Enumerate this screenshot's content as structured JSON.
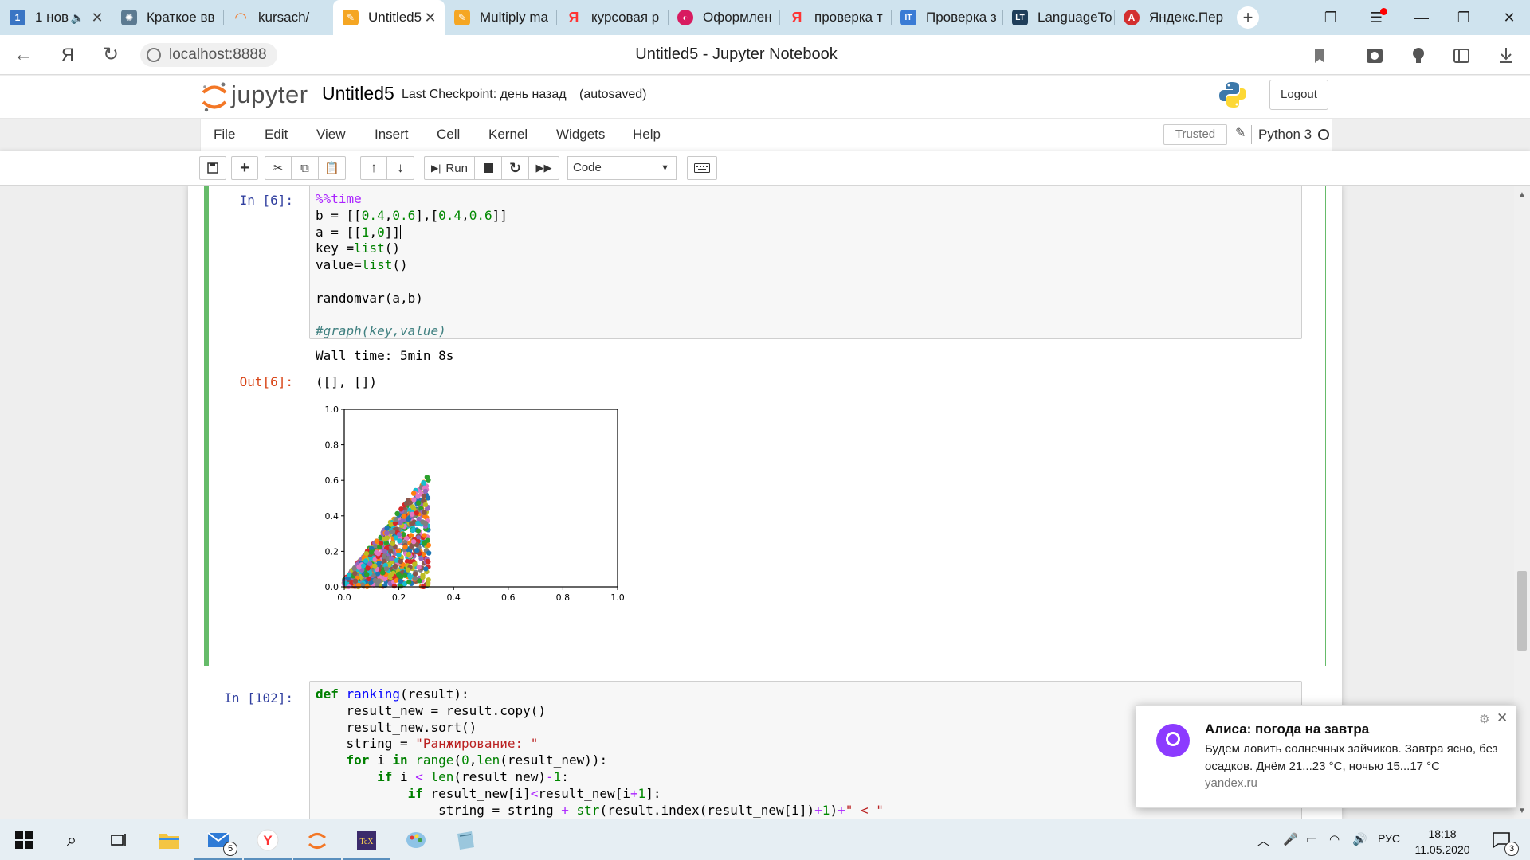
{
  "browser": {
    "tabs": [
      {
        "label": "1 нов",
        "icon": "blue-1",
        "active": false,
        "muted_icon": true
      },
      {
        "label": "Краткое вв",
        "icon": "gear-tab",
        "active": false
      },
      {
        "label": "kursach/",
        "icon": "jupyter-tab",
        "active": false
      },
      {
        "label": "Untitled5",
        "icon": "notebook-tab",
        "active": true
      },
      {
        "label": "Multiply ma",
        "icon": "notebook-tab",
        "active": false
      },
      {
        "label": "курсовая р",
        "icon": "yandex-tab",
        "active": false
      },
      {
        "label": "Оформлен",
        "icon": "swirl-tab",
        "active": false
      },
      {
        "label": "проверка т",
        "icon": "yandex-tab",
        "active": false
      },
      {
        "label": "Проверка з",
        "icon": "it-tab",
        "active": false
      },
      {
        "label": "LanguageTo",
        "icon": "lt-tab",
        "active": false
      },
      {
        "label": "Яндекс.Пер",
        "icon": "translate-tab",
        "active": false
      }
    ],
    "url": "localhost:8888",
    "page_title": "Untitled5 - Jupyter Notebook"
  },
  "jupyter": {
    "logo_text": "jupyter",
    "notebook_name": "Untitled5",
    "checkpoint": "Last Checkpoint: день назад",
    "autosave": "(autosaved)",
    "logout": "Logout",
    "menu": [
      "File",
      "Edit",
      "View",
      "Insert",
      "Cell",
      "Kernel",
      "Widgets",
      "Help"
    ],
    "trusted": "Trusted",
    "kernel": "Python 3",
    "toolbar": {
      "run_label": "Run",
      "cell_type": "Code"
    }
  },
  "cells": [
    {
      "prompt": "In [6]:",
      "code": [
        "%%time",
        "b = [[0.4,0.6],[0.4,0.6]]",
        "a = [[1,0]]",
        "key =list()",
        "value=list()",
        "",
        "randomvar(a,b)",
        "",
        "#graph(key,value)"
      ],
      "stdout": "Wall time: 5min 8s",
      "out_prompt": "Out[6]:",
      "out_value": "([], [])"
    },
    {
      "prompt": "In [102]:",
      "code": [
        "def ranking(result):",
        "    result_new = result.copy()",
        "    result_new.sort()",
        "    string = \"Ранжирование: \"",
        "    for i in range(0,len(result_new)):",
        "        if i < len(result_new)-1:",
        "            if result_new[i]<result_new[i+1]:",
        "                string = string + str(result.index(result_new[i])+1)+\" < \""
      ]
    }
  ],
  "chart_data": {
    "type": "scatter",
    "title": "",
    "xlabel": "",
    "ylabel": "",
    "xlim": [
      0.0,
      1.0
    ],
    "ylim": [
      0.0,
      1.0
    ],
    "xticks": [
      "0.0",
      "0.2",
      "0.4",
      "0.6",
      "0.8",
      "1.0"
    ],
    "yticks": [
      "0.0",
      "0.2",
      "0.4",
      "0.6",
      "0.8",
      "1.0"
    ],
    "grid": false,
    "point_region": {
      "x_min": 0.0,
      "x_max": 0.31,
      "y_max_at_x_max": 0.6,
      "y_max_at_x_0": 0.0
    },
    "palette": [
      "#1f77b4",
      "#ff7f0e",
      "#2ca02c",
      "#d62728",
      "#9467bd",
      "#8c564b",
      "#e377c2",
      "#7f7f7f",
      "#bcbd22",
      "#17becf"
    ]
  },
  "notification": {
    "title": "Алиса: погода на завтра",
    "body": "Будем ловить солнечных зайчиков. Завтра ясно, без осадков. Днём 21...23 °C, ночью 15...17 °C",
    "source": "yandex.ru"
  },
  "taskbar": {
    "lang": "РУС",
    "time": "18:18",
    "date": "11.05.2020",
    "mail_badge": "5",
    "notif_badge": "3"
  }
}
